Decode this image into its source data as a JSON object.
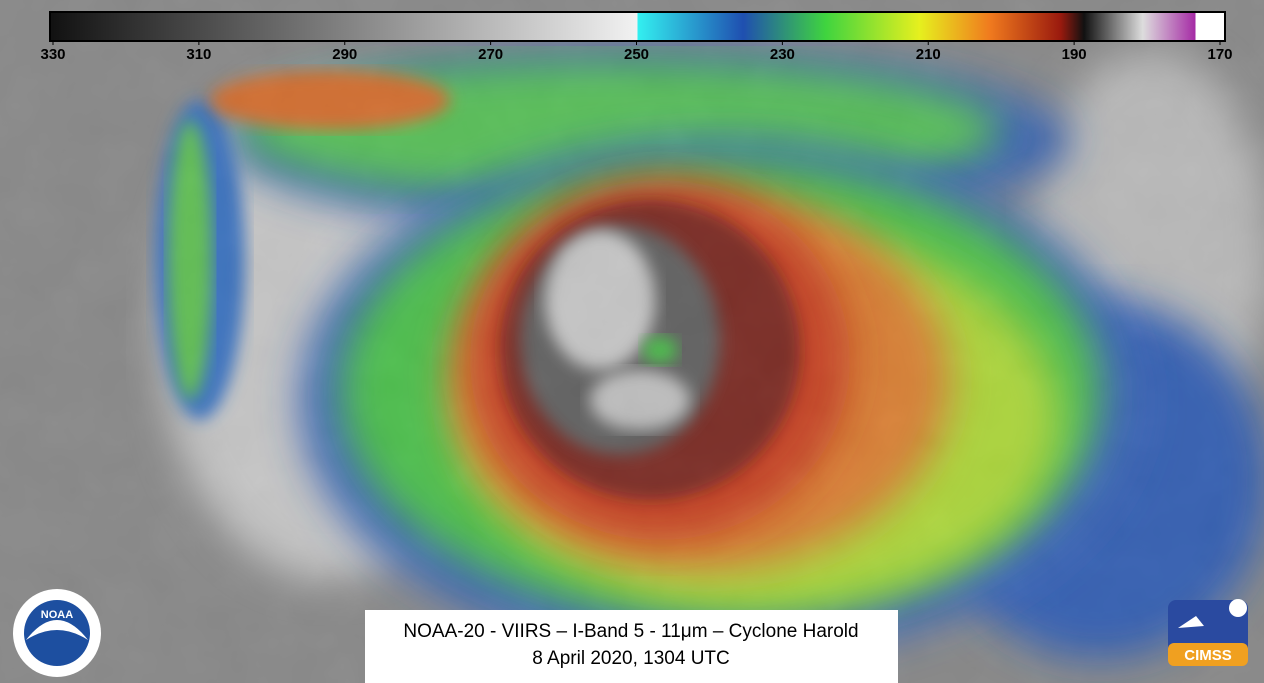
{
  "colorbar": {
    "range": [
      330,
      170
    ],
    "ticks": [
      330,
      310,
      290,
      270,
      250,
      230,
      210,
      190,
      170
    ]
  },
  "caption": {
    "line1": "NOAA-20 - VIIRS – I-Band 5 - 11μm – Cyclone Harold",
    "line2": "8 April 2020, 1304 UTC"
  },
  "logos": {
    "noaa": "NOAA",
    "cimss": "CIMSS"
  }
}
